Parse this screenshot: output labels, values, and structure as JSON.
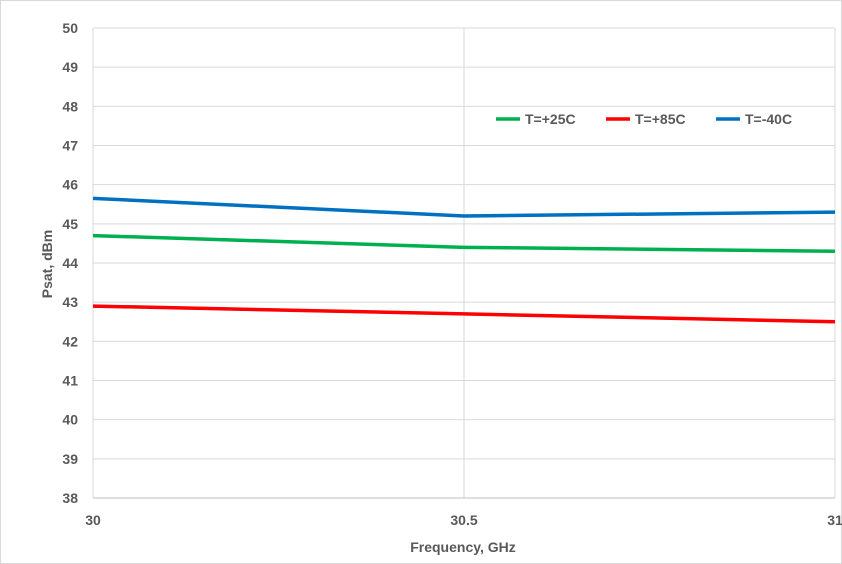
{
  "chart_data": {
    "type": "line",
    "title": "",
    "xlabel": "Frequency, GHz",
    "ylabel": "Psat, dBm",
    "x": [
      30,
      30.5,
      31
    ],
    "x_tick_labels": [
      "30",
      "30.5",
      "31"
    ],
    "xlim": [
      30,
      31
    ],
    "ylim": [
      38,
      50
    ],
    "y_ticks": [
      38,
      39,
      40,
      41,
      42,
      43,
      44,
      45,
      46,
      47,
      48,
      49,
      50
    ],
    "y_tick_labels": [
      "38",
      "39",
      "40",
      "41",
      "42",
      "43",
      "44",
      "45",
      "46",
      "47",
      "48",
      "49",
      "50"
    ],
    "grid": true,
    "legend_position": "top-right",
    "series": [
      {
        "name": "T=+25C",
        "color": "#00b050",
        "values": [
          44.7,
          44.4,
          44.3
        ]
      },
      {
        "name": "T=+85C",
        "color": "#ff0000",
        "values": [
          42.9,
          42.7,
          42.5
        ]
      },
      {
        "name": "T=-40C",
        "color": "#0070c0",
        "values": [
          45.65,
          45.2,
          45.3
        ]
      }
    ]
  }
}
